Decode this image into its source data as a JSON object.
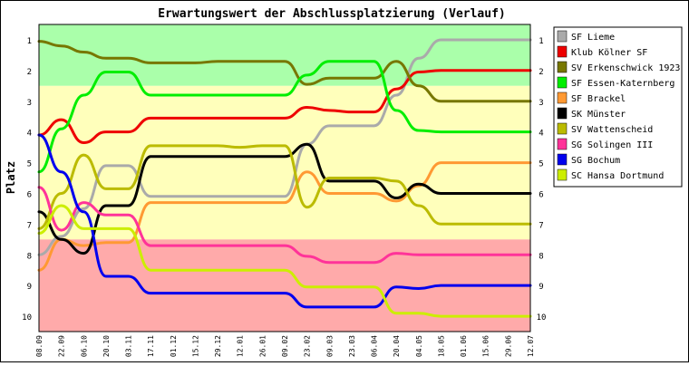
{
  "chart_data": {
    "type": "line",
    "title": "Erwartungswert der Abschlussplatzierung (Verlauf)",
    "ylabel": "Platz",
    "xlabel": "",
    "ylim": [
      1,
      10
    ],
    "y_inverted": true,
    "y_ticks": [
      "1",
      "2",
      "3",
      "4",
      "5",
      "6",
      "7",
      "8",
      "9",
      "10"
    ],
    "bands": [
      {
        "from": 0.5,
        "to": 2.5,
        "color": "#aaffaa"
      },
      {
        "from": 2.5,
        "to": 7.5,
        "color": "#ffffbb"
      },
      {
        "from": 7.5,
        "to": 10.5,
        "color": "#ffaaaa"
      }
    ],
    "grid": false,
    "legend_position": "right",
    "categories": [
      "08.09",
      "22.09",
      "06.10",
      "20.10",
      "03.11",
      "17.11",
      "01.12",
      "15.12",
      "29.12",
      "12.01",
      "26.01",
      "09.02",
      "23.02",
      "09.03",
      "23.03",
      "06.04",
      "20.04",
      "04.05",
      "18.05",
      "01.06",
      "15.06",
      "29.06",
      "12.07"
    ],
    "series": [
      {
        "name": "SF Lieme",
        "color": "#aaaaaa",
        "values": [
          8.0,
          7.4,
          6.5,
          5.1,
          5.1,
          6.1,
          6.1,
          6.1,
          6.1,
          6.1,
          6.1,
          6.1,
          4.4,
          3.8,
          3.8,
          3.8,
          2.8,
          1.6,
          1.0,
          1.0,
          1.0,
          1.0,
          1.0
        ]
      },
      {
        "name": "Klub Kölner SF",
        "color": "#ee0000",
        "values": [
          4.1,
          3.6,
          4.35,
          4.0,
          4.0,
          3.55,
          3.55,
          3.55,
          3.55,
          3.55,
          3.55,
          3.55,
          3.2,
          3.3,
          3.35,
          3.35,
          2.6,
          2.05,
          2.0,
          2.0,
          2.0,
          2.0,
          2.0
        ]
      },
      {
        "name": "SV Erkenschwick 1923",
        "color": "#777700",
        "values": [
          1.05,
          1.2,
          1.4,
          1.6,
          1.6,
          1.75,
          1.75,
          1.75,
          1.7,
          1.7,
          1.7,
          1.7,
          2.45,
          2.25,
          2.25,
          2.25,
          1.7,
          2.5,
          3.0,
          3.0,
          3.0,
          3.0,
          3.0
        ]
      },
      {
        "name": "SF Essen-Katernberg",
        "color": "#00ee00",
        "values": [
          5.3,
          3.9,
          2.8,
          2.05,
          2.05,
          2.8,
          2.8,
          2.8,
          2.8,
          2.8,
          2.8,
          2.8,
          2.15,
          1.7,
          1.7,
          1.7,
          3.3,
          3.95,
          4.0,
          4.0,
          4.0,
          4.0,
          4.0
        ]
      },
      {
        "name": "SF Brackel",
        "color": "#ff9933",
        "values": [
          8.5,
          7.5,
          7.7,
          7.6,
          7.6,
          6.3,
          6.3,
          6.3,
          6.3,
          6.3,
          6.3,
          6.3,
          5.3,
          6.0,
          6.0,
          6.0,
          6.25,
          5.75,
          5.0,
          5.0,
          5.0,
          5.0,
          5.0
        ]
      },
      {
        "name": "SK Münster",
        "color": "#000000",
        "values": [
          6.6,
          7.5,
          7.95,
          6.4,
          6.4,
          4.8,
          4.8,
          4.8,
          4.8,
          4.8,
          4.8,
          4.8,
          4.4,
          5.6,
          5.6,
          5.6,
          6.15,
          5.7,
          6.0,
          6.0,
          6.0,
          6.0,
          6.0
        ]
      },
      {
        "name": "SV Wattenscheid",
        "color": "#bbbb00",
        "values": [
          7.15,
          6.0,
          4.75,
          5.85,
          5.85,
          4.45,
          4.45,
          4.45,
          4.45,
          4.5,
          4.45,
          4.45,
          6.45,
          5.5,
          5.5,
          5.5,
          5.6,
          6.4,
          7.0,
          7.0,
          7.0,
          7.0,
          7.0
        ]
      },
      {
        "name": "SG Solingen III",
        "color": "#ff3399",
        "values": [
          5.8,
          7.2,
          6.3,
          6.7,
          6.7,
          7.7,
          7.7,
          7.7,
          7.7,
          7.7,
          7.7,
          7.7,
          8.05,
          8.25,
          8.25,
          8.25,
          7.95,
          8.0,
          8.0,
          8.0,
          8.0,
          8.0,
          8.0
        ]
      },
      {
        "name": "SG Bochum",
        "color": "#0000ee",
        "values": [
          4.1,
          5.3,
          6.6,
          8.7,
          8.7,
          9.25,
          9.25,
          9.25,
          9.25,
          9.25,
          9.25,
          9.25,
          9.7,
          9.7,
          9.7,
          9.7,
          9.05,
          9.1,
          9.0,
          9.0,
          9.0,
          9.0,
          9.0
        ]
      },
      {
        "name": "SC Hansa Dortmund",
        "color": "#ccee00",
        "values": [
          7.3,
          6.4,
          7.15,
          7.15,
          7.15,
          8.5,
          8.5,
          8.5,
          8.5,
          8.5,
          8.5,
          8.5,
          9.05,
          9.05,
          9.05,
          9.05,
          9.9,
          9.9,
          10.0,
          10.0,
          10.0,
          10.0,
          10.0
        ]
      }
    ]
  }
}
